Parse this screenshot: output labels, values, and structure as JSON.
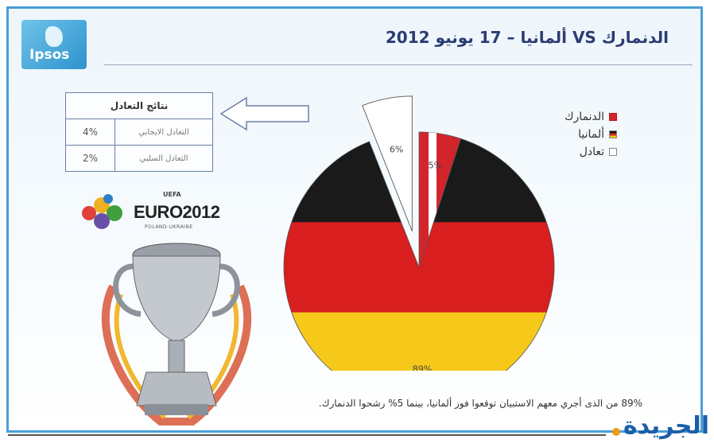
{
  "header": {
    "logo_text": "Ipsos",
    "title": "الدنمارك VS ألمانيا – 17 يونيو 2012"
  },
  "draw_table": {
    "heading": "نتائج التعادل",
    "rows": [
      {
        "label": "التعادل الايجابي",
        "value": "4%"
      },
      {
        "label": "التعادل السلبي",
        "value": "2%"
      }
    ]
  },
  "euro": {
    "title": "EURO2012",
    "subtitle": "POLAND-UKRAINE",
    "uefa": "UEFA"
  },
  "legend": {
    "items": [
      {
        "label": "الدنمارك",
        "color": "#d4242b"
      },
      {
        "label": "ألمانيا",
        "color": "#111111"
      },
      {
        "label": "تعادل",
        "color": "#ffffff"
      }
    ]
  },
  "chart_data": {
    "type": "pie",
    "slices": [
      {
        "label": "الدنمارك",
        "value": 5,
        "display": "5%"
      },
      {
        "label": "ألمانيا",
        "value": 89,
        "display": "89%"
      },
      {
        "label": "تعادل",
        "value": 6,
        "display": "6%"
      }
    ]
  },
  "footnote": "89% من الذى أجري معهم الاستبيان توقعوا فوز ألمانيا، بينما 5% رشحوا الدنمارك.",
  "brand": "الجريدة"
}
